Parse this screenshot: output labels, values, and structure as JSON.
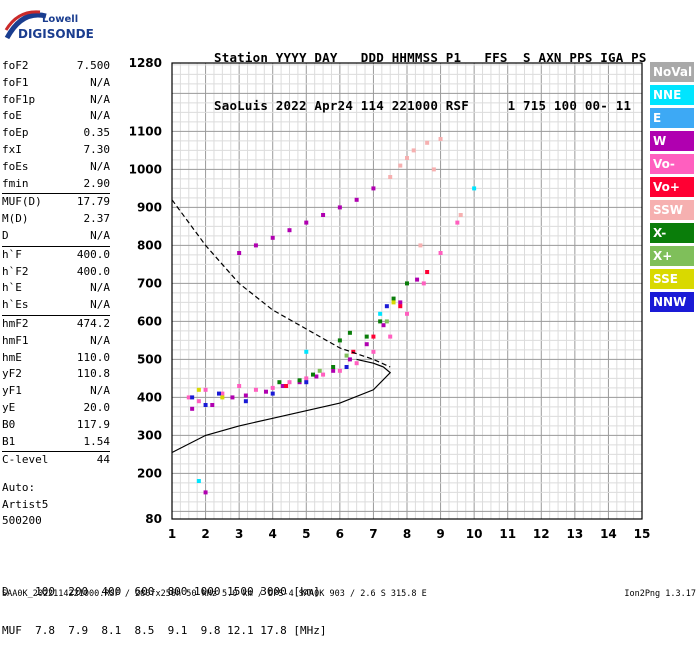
{
  "logo": {
    "line1": "Lowell",
    "line2": "DIGISONDE"
  },
  "header": {
    "labels": "Station YYYY DAY   DDD HHMMSS P1   FFS  S AXN PPS IGA PS",
    "values": "SaoLuis 2022 Apr24 114 221000 RSF     1 715 100 00- 11"
  },
  "params": [
    [
      {
        "label": "foF2",
        "value": "7.500"
      },
      {
        "label": "foF1",
        "value": "N/A"
      },
      {
        "label": "foF1p",
        "value": "N/A"
      },
      {
        "label": "foE",
        "value": "N/A"
      },
      {
        "label": "foEp",
        "value": "0.35"
      },
      {
        "label": "fxI",
        "value": "7.30"
      },
      {
        "label": "foEs",
        "value": "N/A"
      },
      {
        "label": "fmin",
        "value": "2.90"
      }
    ],
    [
      {
        "label": "MUF(D)",
        "value": "17.79"
      },
      {
        "label": "M(D)",
        "value": "2.37"
      },
      {
        "label": "D",
        "value": "N/A"
      }
    ],
    [
      {
        "label": "h`F",
        "value": "400.0"
      },
      {
        "label": "h`F2",
        "value": "400.0"
      },
      {
        "label": "h`E",
        "value": "N/A"
      },
      {
        "label": "h`Es",
        "value": "N/A"
      }
    ],
    [
      {
        "label": "hmF2",
        "value": "474.2"
      },
      {
        "label": "hmF1",
        "value": "N/A"
      },
      {
        "label": "hmE",
        "value": "110.0"
      },
      {
        "label": "yF2",
        "value": "110.8"
      },
      {
        "label": "yF1",
        "value": "N/A"
      },
      {
        "label": "yE",
        "value": "20.0"
      },
      {
        "label": "B0",
        "value": "117.9"
      },
      {
        "label": "B1",
        "value": "1.54"
      }
    ],
    [
      {
        "label": "C-level",
        "value": "44"
      }
    ]
  ],
  "auto": {
    "line1": "Auto:",
    "line2": "Artist5",
    "line3": "500200"
  },
  "legend": [
    {
      "label": "NoVal",
      "color": "#a9a9a9"
    },
    {
      "label": "NNE",
      "color": "#00e5ff"
    },
    {
      "label": "E",
      "color": "#3da9f5"
    },
    {
      "label": "W",
      "color": "#b000b0"
    },
    {
      "label": "Vo-",
      "color": "#ff5fbf"
    },
    {
      "label": "Vo+",
      "color": "#ff0033"
    },
    {
      "label": "SSW",
      "color": "#f6b0b0"
    },
    {
      "label": "X-",
      "color": "#0a7d0a"
    },
    {
      "label": "X+",
      "color": "#7fbf5a"
    },
    {
      "label": "SSE",
      "color": "#d9d900"
    },
    {
      "label": "NNW",
      "color": "#1a1ad6"
    }
  ],
  "muf_table": {
    "row1": "D    100  200  400  600  800 1000 1500 3000 [km]",
    "row2": "MUF  7.8  7.9  8.1  8.5  9.1  9.8 12.1 17.8 [MHz]"
  },
  "footer": "SAA0K_2022114221000.RSF / 280fx256h 50 kHz 5.0 km / DPS-4 SAA0K 903 / 2.6 S 315.8 E",
  "version": "Ion2Png 1.3.17",
  "chart_data": {
    "type": "scatter",
    "title": "",
    "xlabel": "",
    "ylabel": "",
    "xlim": [
      1,
      15
    ],
    "ylim": [
      80,
      1280
    ],
    "x_ticks": [
      1,
      2,
      3,
      4,
      5,
      6,
      7,
      8,
      9,
      10,
      11,
      12,
      13,
      14,
      15
    ],
    "y_ticks": [
      80,
      200,
      300,
      400,
      500,
      600,
      700,
      800,
      900,
      1000,
      1100,
      1280
    ],
    "grid": true,
    "series": [
      {
        "color": "#ff5fbf",
        "points": [
          [
            1.5,
            400
          ],
          [
            1.8,
            390
          ],
          [
            2.0,
            420
          ],
          [
            2.5,
            410
          ],
          [
            3.0,
            430
          ],
          [
            3.5,
            420
          ],
          [
            4.0,
            425
          ],
          [
            4.5,
            440
          ],
          [
            5.0,
            450
          ],
          [
            5.5,
            460
          ],
          [
            6.0,
            470
          ],
          [
            6.5,
            490
          ],
          [
            7.0,
            520
          ],
          [
            7.5,
            560
          ],
          [
            8.0,
            620
          ],
          [
            8.5,
            700
          ],
          [
            9.0,
            780
          ],
          [
            9.5,
            860
          ]
        ]
      },
      {
        "color": "#b000b0",
        "points": [
          [
            1.6,
            370
          ],
          [
            2.2,
            380
          ],
          [
            2.8,
            400
          ],
          [
            3.2,
            405
          ],
          [
            3.8,
            415
          ],
          [
            4.3,
            430
          ],
          [
            4.8,
            440
          ],
          [
            5.3,
            455
          ],
          [
            5.8,
            470
          ],
          [
            6.3,
            500
          ],
          [
            6.8,
            540
          ],
          [
            7.3,
            590
          ],
          [
            7.8,
            650
          ],
          [
            8.3,
            710
          ],
          [
            3.0,
            780
          ],
          [
            3.5,
            800
          ],
          [
            4.0,
            820
          ],
          [
            4.5,
            840
          ],
          [
            5.0,
            860
          ],
          [
            5.5,
            880
          ],
          [
            6.0,
            900
          ],
          [
            6.5,
            920
          ],
          [
            7.0,
            950
          ],
          [
            2.0,
            150
          ]
        ]
      },
      {
        "color": "#0a7d0a",
        "points": [
          [
            4.2,
            440
          ],
          [
            4.8,
            445
          ],
          [
            5.2,
            460
          ],
          [
            5.8,
            480
          ],
          [
            6.0,
            550
          ],
          [
            6.3,
            570
          ],
          [
            6.8,
            560
          ],
          [
            7.2,
            600
          ],
          [
            7.6,
            660
          ],
          [
            8.0,
            700
          ]
        ]
      },
      {
        "color": "#1a1ad6",
        "points": [
          [
            1.6,
            400
          ],
          [
            2.0,
            380
          ],
          [
            2.4,
            410
          ],
          [
            3.2,
            390
          ],
          [
            4.0,
            410
          ],
          [
            5.0,
            440
          ],
          [
            6.2,
            480
          ],
          [
            7.4,
            640
          ]
        ]
      },
      {
        "color": "#f6b0b0",
        "points": [
          [
            7.5,
            980
          ],
          [
            7.8,
            1010
          ],
          [
            8.0,
            1030
          ],
          [
            8.2,
            1050
          ],
          [
            8.6,
            1070
          ],
          [
            9.0,
            1080
          ],
          [
            8.8,
            1000
          ],
          [
            9.6,
            880
          ],
          [
            8.4,
            800
          ]
        ]
      },
      {
        "color": "#ff0033",
        "points": [
          [
            6.4,
            520
          ],
          [
            7.0,
            560
          ],
          [
            7.8,
            640
          ],
          [
            8.6,
            730
          ],
          [
            4.4,
            430
          ]
        ]
      },
      {
        "color": "#00e5ff",
        "points": [
          [
            5.0,
            520
          ],
          [
            7.2,
            620
          ],
          [
            10.0,
            950
          ],
          [
            1.8,
            180
          ]
        ]
      },
      {
        "color": "#d9d900",
        "points": [
          [
            1.8,
            420
          ],
          [
            2.5,
            400
          ],
          [
            7.6,
            650
          ]
        ]
      },
      {
        "color": "#7fbf5a",
        "points": [
          [
            5.4,
            470
          ],
          [
            6.2,
            510
          ],
          [
            7.4,
            600
          ]
        ]
      }
    ],
    "profile_solid": [
      [
        1,
        255
      ],
      [
        2,
        300
      ],
      [
        3,
        325
      ],
      [
        4,
        345
      ],
      [
        5,
        365
      ],
      [
        6,
        385
      ],
      [
        7,
        420
      ],
      [
        7.5,
        465
      ],
      [
        7.3,
        480
      ],
      [
        7.0,
        490
      ],
      [
        6.5,
        500
      ]
    ],
    "profile_dashed": [
      [
        1,
        920
      ],
      [
        2,
        800
      ],
      [
        3,
        700
      ],
      [
        4,
        630
      ],
      [
        5,
        580
      ],
      [
        6,
        530
      ],
      [
        7,
        500
      ],
      [
        7.5,
        480
      ]
    ]
  }
}
